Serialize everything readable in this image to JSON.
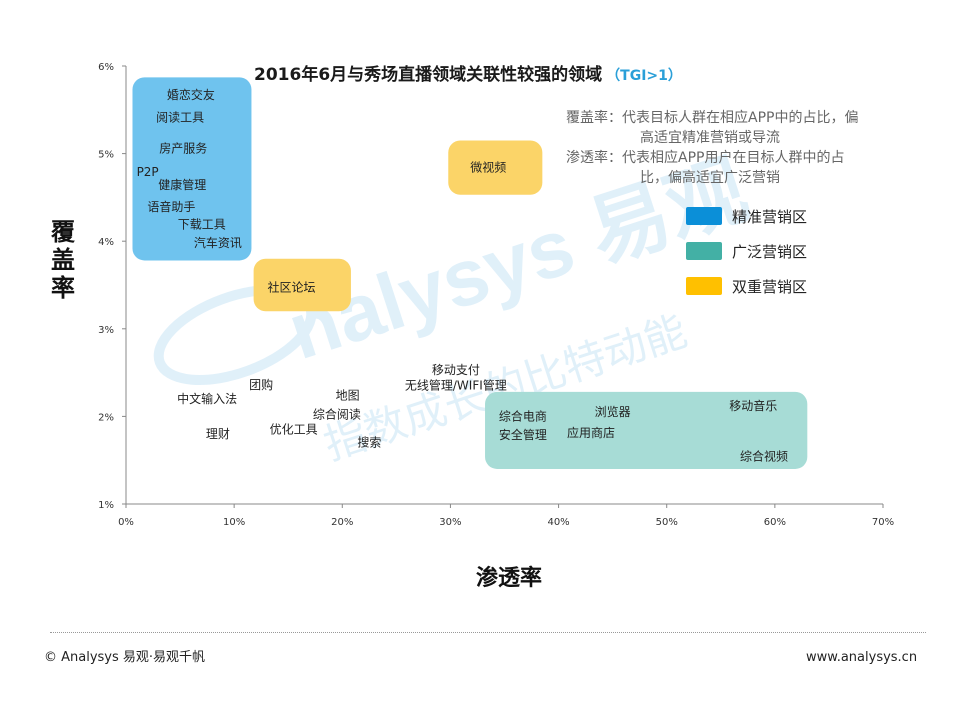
{
  "chart_data": {
    "type": "scatter",
    "title": "2016年6月与秀场直播领域关联性较强的领域",
    "subtitle": "（TGI>1）",
    "xlabel": "渗透率",
    "ylabel": "覆盖率",
    "xlim": [
      0,
      70
    ],
    "ylim": [
      1,
      6
    ],
    "x_ticks": [
      "0%",
      "10%",
      "20%",
      "30%",
      "40%",
      "50%",
      "60%",
      "70%"
    ],
    "y_ticks": [
      "1%",
      "2%",
      "3%",
      "4%",
      "5%",
      "6%"
    ],
    "grid": false,
    "zones": [
      {
        "label": "精准营销区",
        "color": "#0b8fd8",
        "x0": 0.6,
        "x1": 11.6,
        "y0": 3.78,
        "y1": 5.87,
        "fill": "#6fc3ee"
      },
      {
        "label": "广泛营销区",
        "color": "#43b0a5",
        "x0": 33.2,
        "x1": 63.0,
        "y0": 1.4,
        "y1": 2.28,
        "fill": "#a7dcd6"
      },
      {
        "label": "双重营销区",
        "color": "#ffc000",
        "x0": 11.8,
        "x1": 20.8,
        "y0": 3.2,
        "y1": 3.8,
        "fill": "#fbd468"
      },
      {
        "label": "双重营销区",
        "color": "#ffc000",
        "x0": 29.8,
        "x1": 38.5,
        "y0": 4.53,
        "y1": 5.15,
        "fill": "#fbd468"
      }
    ],
    "points": [
      {
        "label": "婚恋交友",
        "x": 6.0,
        "y": 5.67
      },
      {
        "label": "阅读工具",
        "x": 5.0,
        "y": 5.41
      },
      {
        "label": "房产服务",
        "x": 5.3,
        "y": 5.06
      },
      {
        "label": "P2P",
        "x": 2.0,
        "y": 4.79
      },
      {
        "label": "健康管理",
        "x": 5.2,
        "y": 4.64
      },
      {
        "label": "语音助手",
        "x": 4.2,
        "y": 4.39
      },
      {
        "label": "下载工具",
        "x": 7.0,
        "y": 4.19
      },
      {
        "label": "汽车资讯",
        "x": 8.5,
        "y": 3.98
      },
      {
        "label": "社区论坛",
        "x": 15.3,
        "y": 3.47
      },
      {
        "label": "微视频",
        "x": 33.5,
        "y": 4.84
      },
      {
        "label": "移动支付",
        "x": 30.5,
        "y": 2.53
      },
      {
        "label": "无线管理/WIFI管理",
        "x": 30.5,
        "y": 2.35
      },
      {
        "label": "团购",
        "x": 12.5,
        "y": 2.36
      },
      {
        "label": "中文输入法",
        "x": 7.5,
        "y": 2.2
      },
      {
        "label": "地图",
        "x": 20.5,
        "y": 2.24
      },
      {
        "label": "综合阅读",
        "x": 19.5,
        "y": 2.02
      },
      {
        "label": "优化工具",
        "x": 15.5,
        "y": 1.85
      },
      {
        "label": "理财",
        "x": 8.5,
        "y": 1.8
      },
      {
        "label": "搜索",
        "x": 22.5,
        "y": 1.7
      },
      {
        "label": "综合电商",
        "x": 36.7,
        "y": 2.0
      },
      {
        "label": "安全管理",
        "x": 36.7,
        "y": 1.79
      },
      {
        "label": "浏览器",
        "x": 45.0,
        "y": 2.05
      },
      {
        "label": "应用商店",
        "x": 43.0,
        "y": 1.81
      },
      {
        "label": "移动音乐",
        "x": 58.0,
        "y": 2.12
      },
      {
        "label": "综合视频",
        "x": 59.0,
        "y": 1.54
      }
    ]
  },
  "notes": [
    {
      "line1": "覆盖率：代表目标人群在相应APP中的占比，偏",
      "line2": "高适宜精准营销或导流"
    },
    {
      "line1": "渗透率：代表相应APP用户在目标人群中的占",
      "line2": "比，偏高适宜广泛营销"
    }
  ],
  "legend": [
    {
      "label": "精准营销区",
      "color": "#0b8fd8"
    },
    {
      "label": "广泛营销区",
      "color": "#43b0a5"
    },
    {
      "label": "双重营销区",
      "color": "#ffc000"
    }
  ],
  "watermark": {
    "brand": "Analysys 易观",
    "slogan": "指数成长的比特动能"
  },
  "footer": {
    "copyright": "© Analysys 易观·易观千帆",
    "website": "www.analysys.cn"
  }
}
